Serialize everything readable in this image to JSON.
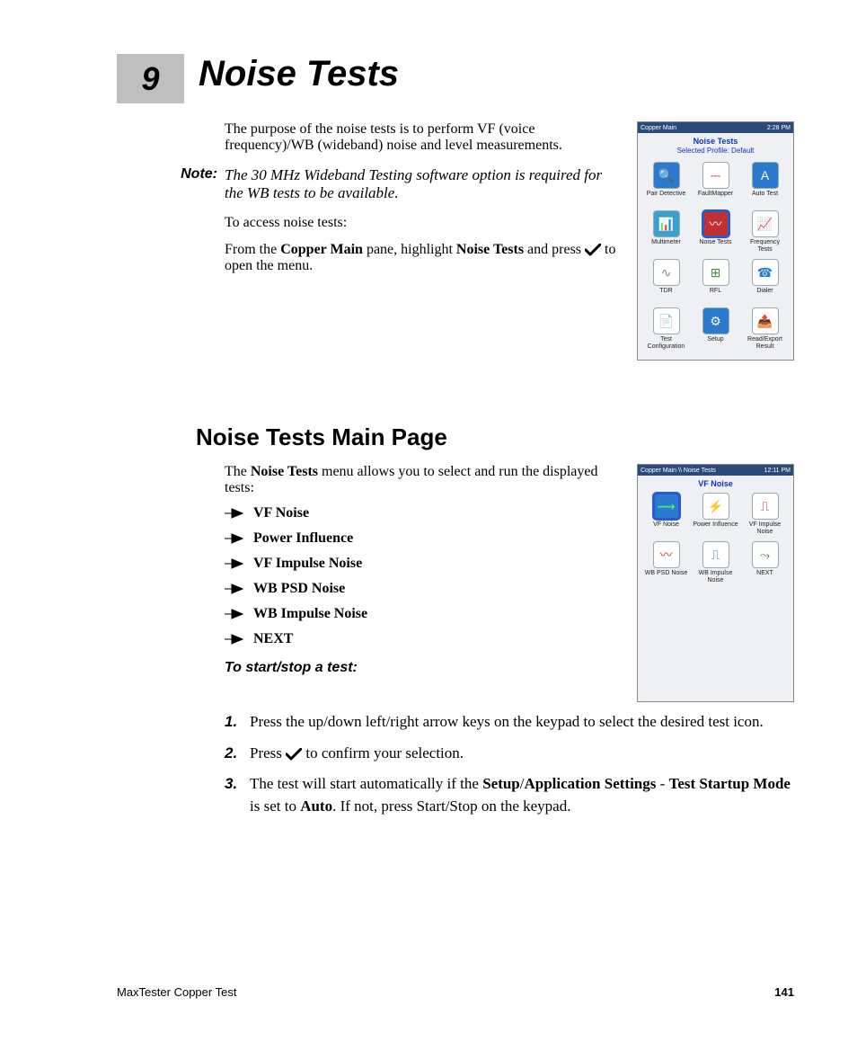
{
  "chapter": {
    "number": "9",
    "title": "Noise Tests"
  },
  "intro": "The purpose of the noise tests is to perform VF (voice frequency)/WB (wideband) noise and level measurements.",
  "note": {
    "label": "Note:",
    "text": "The 30 MHz Wideband Testing software option is required for the WB tests to be available."
  },
  "access_intro": "To access noise tests:",
  "access_text_pre": "From the ",
  "access_text_b1": "Copper Main",
  "access_text_mid": " pane, highlight ",
  "access_text_b2": "Noise Tests",
  "access_text_post1": " and press ",
  "access_text_post2": " to open the menu.",
  "section2_title": "Noise Tests Main Page",
  "section2_intro_pre": "The ",
  "section2_intro_b": "Noise Tests",
  "section2_intro_post": " menu allows you to select and run the displayed tests:",
  "bullets": [
    "VF Noise",
    "Power Influence",
    "VF Impulse Noise",
    "WB PSD Noise",
    "WB Impulse Noise",
    "NEXT"
  ],
  "subhead": "To start/stop a test:",
  "steps": [
    {
      "n": "1.",
      "text": "Press the up/down left/right arrow keys on the keypad to select the desired test icon."
    },
    {
      "n": "2.",
      "pre": "Press ",
      "post": " to confirm your selection.",
      "check": true
    },
    {
      "n": "3.",
      "pre": "The test will start automatically if the ",
      "b1": "Setup",
      "mid1": "/",
      "b2": "Application Settings",
      "mid2": " - ",
      "b3": "Test Startup Mode",
      "mid3": " is set to ",
      "b4": "Auto",
      "post": ". If not, press Start/Stop on the keypad."
    }
  ],
  "footer": {
    "doc": "MaxTester Copper Test",
    "page": "141"
  },
  "device1": {
    "bar_left": "Copper Main",
    "bar_right": "2:28 PM",
    "title": "Noise Tests",
    "subtitle": "Selected Profile:  Default",
    "icons": [
      {
        "label": "Pair Detective",
        "glyph": "🔍",
        "bg": "#2a7ad0",
        "fg": "#fff"
      },
      {
        "label": "FaultMapper",
        "glyph": "⎓",
        "bg": "#ffffff",
        "fg": "#c03030"
      },
      {
        "label": "Auto Test",
        "glyph": "A",
        "bg": "#2a7ad0",
        "fg": "#fff",
        "ring": true
      },
      {
        "label": "Multimeter",
        "glyph": "📊",
        "bg": "#3aa0d0",
        "fg": "#fff"
      },
      {
        "label": "Noise Tests",
        "glyph": "〰",
        "bg": "#c03030",
        "fg": "#fff",
        "sel": true
      },
      {
        "label": "Frequency Tests",
        "glyph": "📈",
        "bg": "#ffffff",
        "fg": "#888"
      },
      {
        "label": "TDR",
        "glyph": "∿",
        "bg": "#ffffff",
        "fg": "#888"
      },
      {
        "label": "RFL",
        "glyph": "⊞",
        "bg": "#ffffff",
        "fg": "#3a9a3a"
      },
      {
        "label": "Dialer",
        "glyph": "☎",
        "bg": "#ffffff",
        "fg": "#2a7ad0"
      },
      {
        "label": "Test Configuration",
        "glyph": "📄",
        "bg": "#ffffff",
        "fg": "#3a9a3a"
      },
      {
        "label": "Setup",
        "glyph": "⚙",
        "bg": "#2a7ad0",
        "fg": "#fff"
      },
      {
        "label": "Read/Export Result",
        "glyph": "📤",
        "bg": "#ffffff",
        "fg": "#888"
      }
    ]
  },
  "device2": {
    "bar_left": "Copper Main \\\\ Noise Tests",
    "bar_right": "12:11 PM",
    "title": "VF Noise",
    "icons": [
      {
        "label": "VF Noise",
        "glyph": "⟿",
        "bg": "#2a7ad0",
        "fg": "#4aff4a",
        "sel": true
      },
      {
        "label": "Power Influence",
        "glyph": "⚡",
        "bg": "#ffffff",
        "fg": "#e0a020"
      },
      {
        "label": "VF Impulse Noise",
        "glyph": "⎍",
        "bg": "#ffffff",
        "fg": "#c03030"
      },
      {
        "label": "WB PSD Noise",
        "glyph": "〰",
        "bg": "#ffffff",
        "fg": "#c03030"
      },
      {
        "label": "WB Impulse Noise",
        "glyph": "⎍",
        "bg": "#ffffff",
        "fg": "#2a7ad0"
      },
      {
        "label": "NEXT",
        "glyph": "⤳",
        "bg": "#ffffff",
        "fg": "#3a9a3a"
      }
    ]
  },
  "colors": {
    "chapter_box": "#bfbfbf",
    "device_bg": "#eef0f4",
    "device_bar": "#2a4a7a",
    "link_blue": "#1030c0"
  }
}
